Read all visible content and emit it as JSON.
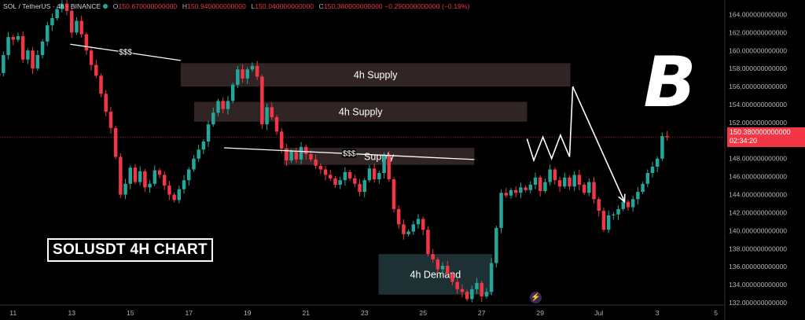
{
  "header": {
    "symbol": "SOL / TetherUS · 4h · BINANCE",
    "open_label": "O",
    "open": "150.670000000000",
    "high_label": "H",
    "high": "150.940000000000",
    "low_label": "L",
    "low": "150.040000000000",
    "close_label": "C",
    "close": "150.380000000000",
    "change": "−0.290000000000 (−0.19%)"
  },
  "chart_title": "SOLUSDT 4H CHART",
  "current_price": {
    "value": "150.380000000000",
    "countdown": "02:34:20"
  },
  "logo_letter": "B",
  "colors": {
    "up": "#26a69a",
    "down": "#f23645",
    "background": "#000000",
    "zone": "#3a2c2c",
    "demand_zone": "#1f3336"
  },
  "chart_data": {
    "type": "candlestick",
    "title": "SOLUSDT 4H CHART",
    "ylim": [
      132,
      165
    ],
    "y_ticks": [
      132,
      134,
      136,
      138,
      140,
      142,
      144,
      146,
      148,
      150,
      152,
      154,
      156,
      158,
      160,
      162,
      164
    ],
    "y_tick_labels": [
      "132.000000000000",
      "134.000000000000",
      "136.000000000000",
      "138.000000000000",
      "140.000000000000",
      "142.000000000000",
      "144.000000000000",
      "146.000000000000",
      "148.000000000000",
      "150.000000000000",
      "152.000000000000",
      "154.000000000000",
      "156.000000000000",
      "158.000000000000",
      "160.000000000000",
      "162.000000000000",
      "164.000000000000"
    ],
    "x_ticks": [
      {
        "label": "11",
        "day": 11
      },
      {
        "label": "13",
        "day": 13
      },
      {
        "label": "15",
        "day": 15
      },
      {
        "label": "17",
        "day": 17
      },
      {
        "label": "19",
        "day": 19
      },
      {
        "label": "21",
        "day": 21
      },
      {
        "label": "23",
        "day": 23
      },
      {
        "label": "25",
        "day": 25
      },
      {
        "label": "27",
        "day": 27
      },
      {
        "label": "29",
        "day": 29
      },
      {
        "label": "Jul",
        "day": 31
      },
      {
        "label": "3",
        "day": 33
      },
      {
        "label": "5",
        "day": 35
      }
    ],
    "x_domain_days": [
      10.55,
      35.25
    ],
    "candle_start_day": 10.5,
    "candle_step_days": 0.16667,
    "closes": [
      157.5,
      159.5,
      161.5,
      161.2,
      161.6,
      159.0,
      160.0,
      158.0,
      159.5,
      161.0,
      162.8,
      163.6,
      164.6,
      165.2,
      164.4,
      162.0,
      163.3,
      161.8,
      160.0,
      158.4,
      157.2,
      155.2,
      153.2,
      151.4,
      148.2,
      144.0,
      145.2,
      147.0,
      145.4,
      146.6,
      144.8,
      145.2,
      146.7,
      146.2,
      145.0,
      144.0,
      143.4,
      144.6,
      145.6,
      146.8,
      148.0,
      149.0,
      149.9,
      151.8,
      153.1,
      154.4,
      153.5,
      154.4,
      156.2,
      157.9,
      156.9,
      157.9,
      158.3,
      157.1,
      151.8,
      153.7,
      152.6,
      151.0,
      149.1,
      147.8,
      148.8,
      147.9,
      149.3,
      148.5,
      147.9,
      147.2,
      146.8,
      146.2,
      145.8,
      145.1,
      145.6,
      146.5,
      145.8,
      145.2,
      144.3,
      145.6,
      146.9,
      145.7,
      146.4,
      148.3,
      145.7,
      142.4,
      140.7,
      139.6,
      139.9,
      140.7,
      141.3,
      140.1,
      137.4,
      136.8,
      135.7,
      136.1,
      135.2,
      134.3,
      133.5,
      133.2,
      132.4,
      133.5,
      134.2,
      132.7,
      133.2,
      136.4,
      140.3,
      144.2,
      143.9,
      144.5,
      144.2,
      144.8,
      144.5,
      145.1,
      145.9,
      144.4,
      145.4,
      146.8,
      145.6,
      144.9,
      145.9,
      144.9,
      146.2,
      145.1,
      144.2,
      145.4,
      143.5,
      142.2,
      140.1,
      141.7,
      141.8,
      142.4,
      143.2,
      142.6,
      143.5,
      144.3,
      145.2,
      146.4,
      147.1,
      148.0,
      150.5,
      150.38
    ],
    "annotations": {
      "labels": [
        "$$$",
        "4h Supply",
        "4h Supply",
        "$$$",
        "Supply",
        "4h Demand"
      ],
      "zones": [
        {
          "label": "4h Supply",
          "from_day": 16.72,
          "to_day": 30.03,
          "low": 156.0,
          "high": 158.6
        },
        {
          "label": "4h Supply",
          "from_day": 17.18,
          "to_day": 28.55,
          "low": 152.1,
          "high": 154.3
        },
        {
          "label": "Supply",
          "from_day": 20.24,
          "to_day": 26.75,
          "low": 147.3,
          "high": 149.2
        },
        {
          "label": "4h Demand",
          "from_day": 23.48,
          "to_day": 27.36,
          "low": 132.9,
          "high": 137.4
        }
      ],
      "liquidity_lines": [
        {
          "label": "$$$",
          "from": [
            12.95,
            160.7
          ],
          "to": [
            16.72,
            158.9
          ]
        },
        {
          "label": "$$$",
          "from": [
            18.2,
            149.2
          ],
          "to": [
            26.75,
            147.9
          ]
        }
      ],
      "projection": [
        [
          28.55,
          150.2
        ],
        [
          28.78,
          147.8
        ],
        [
          29.09,
          150.4
        ],
        [
          29.39,
          148.0
        ],
        [
          29.69,
          150.6
        ],
        [
          30.0,
          148.2
        ],
        [
          30.11,
          156.0
        ],
        [
          31.88,
          143.2
        ]
      ]
    }
  }
}
